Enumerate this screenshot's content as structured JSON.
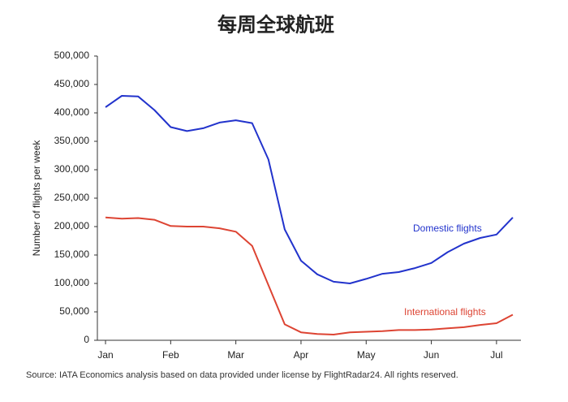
{
  "chart_data": {
    "type": "line",
    "title": "每周全球航班",
    "y_label": "Number of flights per week",
    "source": "Source: IATA Economics analysis based on data provided under license by FlightRadar24. All rights reserved.",
    "x": [
      0,
      1,
      2,
      3,
      4,
      5,
      6,
      7,
      8,
      9,
      10,
      11,
      12,
      13,
      14,
      15,
      16,
      17,
      18,
      19,
      20,
      21,
      22,
      23,
      24,
      25
    ],
    "xlim": [
      -0.5,
      25.5
    ],
    "xticks": [
      {
        "value": 0,
        "label": "Jan"
      },
      {
        "value": 4,
        "label": "Feb"
      },
      {
        "value": 8,
        "label": "Mar"
      },
      {
        "value": 12,
        "label": "Apr"
      },
      {
        "value": 16,
        "label": "May"
      },
      {
        "value": 20,
        "label": "Jun"
      },
      {
        "value": 24,
        "label": "Jul"
      }
    ],
    "ylim": [
      0,
      500000
    ],
    "yticks": [
      0,
      {
        "value": 50000,
        "label": "50,000"
      },
      {
        "value": 100000,
        "label": "100,000"
      },
      {
        "value": 150000,
        "label": "150,000"
      },
      {
        "value": 200000,
        "label": "200,000"
      },
      {
        "value": 250000,
        "label": "250,000"
      },
      {
        "value": 300000,
        "label": "300,000"
      },
      {
        "value": 350000,
        "label": "350,000"
      },
      {
        "value": 400000,
        "label": "400,000"
      },
      {
        "value": 450000,
        "label": "450,000"
      },
      {
        "value": 500000,
        "label": "500,000"
      }
    ],
    "grid": false,
    "series": [
      {
        "name": "Domestic flights",
        "color": "#2233cc",
        "values": [
          410000,
          430000,
          429000,
          405000,
          375000,
          368000,
          373000,
          383000,
          387000,
          382000,
          318000,
          195000,
          140000,
          116000,
          103000,
          100000,
          108000,
          117000,
          120000,
          127000,
          136000,
          155000,
          170000,
          180000,
          186000,
          216000
        ]
      },
      {
        "name": "International flights",
        "color": "#dd4433",
        "values": [
          216000,
          214000,
          215000,
          212000,
          201000,
          200000,
          200000,
          197000,
          191000,
          166000,
          97000,
          28000,
          14000,
          11000,
          10000,
          14000,
          15000,
          16000,
          18000,
          18000,
          19000,
          21000,
          23000,
          27000,
          30000,
          45000
        ]
      }
    ]
  }
}
